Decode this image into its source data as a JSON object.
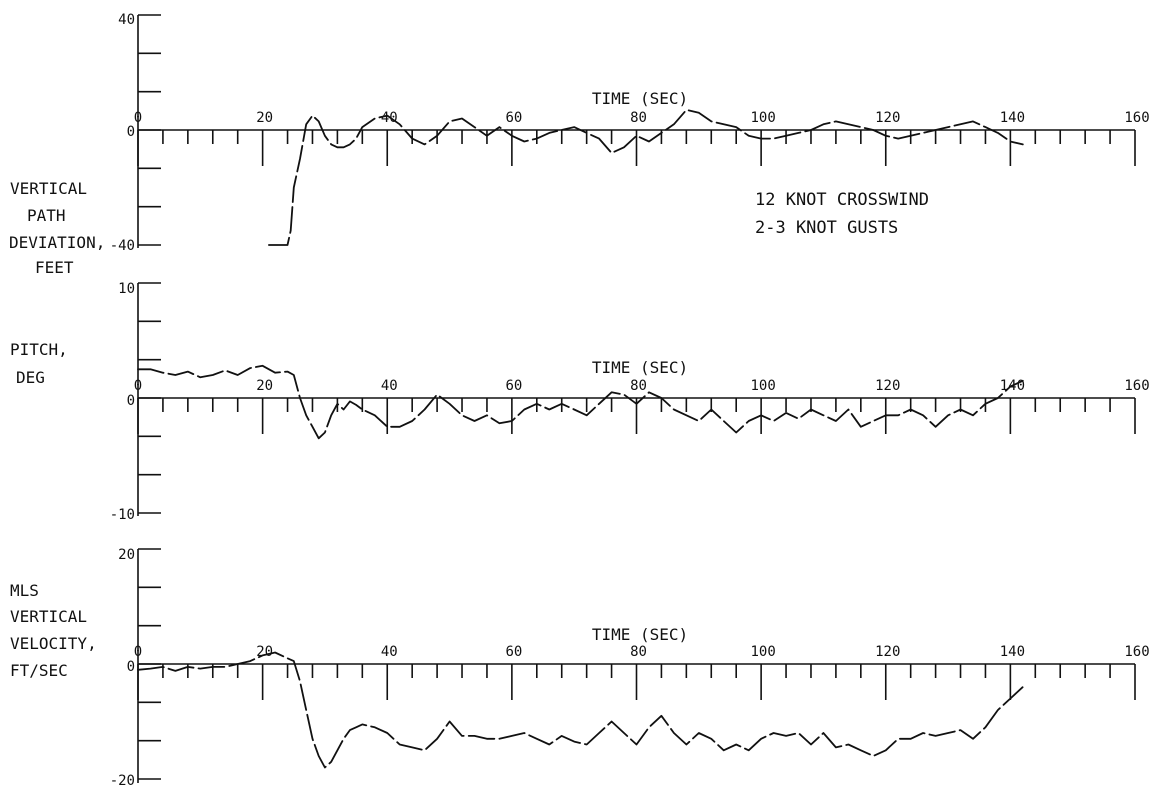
{
  "chart_data": [
    {
      "type": "line",
      "ylabel_lines": [
        "VERTICAL",
        "PATH",
        "DEVIATION,",
        "FEET"
      ],
      "xlabel": "TIME (SEC)",
      "xlim": [
        0,
        160
      ],
      "ylim": [
        -40,
        40
      ],
      "x_ticks": [
        0,
        20,
        40,
        60,
        80,
        100,
        120,
        140,
        160
      ],
      "y_tick_labels": [
        "40",
        "0",
        "-40"
      ],
      "annotation_lines": [
        "12 KNOT CROSSWIND",
        "2-3 KNOT GUSTS"
      ],
      "series": [
        {
          "x": [
            21,
            24,
            24.5,
            25,
            26,
            27,
            28,
            29,
            30,
            31,
            32,
            33,
            34,
            35,
            36,
            38,
            40,
            42,
            44,
            46,
            48,
            50,
            52,
            54,
            56,
            58,
            60,
            62,
            64,
            66,
            68,
            70,
            72,
            74,
            76,
            78,
            80,
            82,
            84,
            86,
            88,
            90,
            92,
            94,
            96,
            98,
            100,
            102,
            104,
            106,
            108,
            110,
            112,
            114,
            116,
            118,
            120,
            122,
            124,
            126,
            128,
            130,
            132,
            134,
            136,
            138,
            140,
            142
          ],
          "y": [
            -40,
            -40,
            -35,
            -20,
            -10,
            2,
            5,
            3,
            -2,
            -5,
            -6,
            -6,
            -5,
            -3,
            1,
            4,
            5,
            2,
            -3,
            -5,
            -2,
            3,
            4,
            1,
            -2,
            1,
            -2,
            -4,
            -3,
            -1,
            0,
            1,
            -1,
            -3,
            -8,
            -6,
            -2,
            -4,
            -1,
            2,
            7,
            6,
            3,
            2,
            1,
            -2,
            -3,
            -3,
            -2,
            -1,
            0,
            2,
            3,
            2,
            1,
            0,
            -2,
            -3,
            -2,
            -1,
            0,
            1,
            2,
            3,
            1,
            -1,
            -4,
            -5
          ]
        }
      ]
    },
    {
      "type": "line",
      "ylabel_lines": [
        "PITCH,",
        "DEG"
      ],
      "xlabel": "TIME (SEC)",
      "xlim": [
        0,
        160
      ],
      "ylim": [
        -10,
        10
      ],
      "x_ticks": [
        0,
        20,
        40,
        60,
        80,
        100,
        120,
        140,
        160
      ],
      "y_tick_labels": [
        "10",
        "0",
        "-10"
      ],
      "series": [
        {
          "x": [
            0,
            2,
            4,
            6,
            8,
            10,
            12,
            14,
            16,
            18,
            20,
            22,
            24,
            25,
            26,
            27,
            28,
            29,
            30,
            31,
            32,
            33,
            34,
            35,
            36,
            38,
            40,
            42,
            44,
            46,
            48,
            50,
            52,
            54,
            56,
            58,
            60,
            62,
            64,
            66,
            68,
            70,
            72,
            74,
            76,
            78,
            80,
            82,
            84,
            86,
            88,
            90,
            92,
            94,
            96,
            98,
            100,
            102,
            104,
            106,
            108,
            110,
            112,
            114,
            116,
            118,
            120,
            122,
            124,
            126,
            128,
            130,
            132,
            134,
            136,
            138,
            140,
            142
          ],
          "y": [
            2.5,
            2.5,
            2.2,
            2,
            2.3,
            1.8,
            2,
            2.4,
            2,
            2.6,
            2.8,
            2.2,
            2.3,
            2,
            0,
            -1.5,
            -2.5,
            -3.5,
            -3,
            -1.5,
            -0.5,
            -1,
            -0.3,
            -0.6,
            -1,
            -1.5,
            -2.5,
            -2.5,
            -2,
            -1,
            0.3,
            -0.5,
            -1.5,
            -2,
            -1.5,
            -2.2,
            -2,
            -1,
            -0.5,
            -1,
            -0.5,
            -1,
            -1.5,
            -0.5,
            0.5,
            0.3,
            -0.5,
            0.5,
            0,
            -1,
            -1.5,
            -2,
            -1,
            -2,
            -3,
            -2,
            -1.5,
            -2,
            -1.3,
            -1.8,
            -1,
            -1.5,
            -2,
            -1,
            -2.5,
            -2,
            -1.5,
            -1.5,
            -1,
            -1.5,
            -2.5,
            -1.5,
            -1,
            -1.5,
            -0.5,
            0,
            1,
            1.5
          ]
        }
      ]
    },
    {
      "type": "line",
      "ylabel_lines": [
        "MLS",
        "VERTICAL",
        "VELOCITY,",
        "FT/SEC"
      ],
      "xlabel": "TIME (SEC)",
      "xlim": [
        0,
        160
      ],
      "ylim": [
        -20,
        20
      ],
      "x_ticks": [
        0,
        20,
        40,
        60,
        80,
        100,
        120,
        140,
        160
      ],
      "y_tick_labels": [
        "20",
        "0",
        "-20"
      ],
      "series": [
        {
          "x": [
            0,
            2,
            4,
            6,
            8,
            10,
            12,
            14,
            16,
            18,
            20,
            22,
            24,
            25,
            26,
            27,
            28,
            29,
            30,
            31,
            32,
            33,
            34,
            35,
            36,
            38,
            40,
            42,
            44,
            46,
            48,
            50,
            52,
            54,
            56,
            58,
            60,
            62,
            64,
            66,
            68,
            70,
            72,
            74,
            76,
            78,
            80,
            82,
            84,
            86,
            88,
            90,
            92,
            94,
            96,
            98,
            100,
            102,
            104,
            106,
            108,
            110,
            112,
            114,
            116,
            118,
            120,
            122,
            124,
            126,
            128,
            130,
            132,
            134,
            136,
            138,
            140,
            142
          ],
          "y": [
            -1,
            -0.8,
            -0.5,
            -1.2,
            -0.5,
            -0.8,
            -0.5,
            -0.5,
            0,
            0.5,
            1.5,
            2,
            1,
            0.5,
            -3,
            -8,
            -13,
            -16,
            -18,
            -17,
            -15,
            -13,
            -11.5,
            -11,
            -10.5,
            -11,
            -12,
            -14,
            -14.5,
            -15,
            -13,
            -10,
            -12.5,
            -12.5,
            -13,
            -13,
            -12.5,
            -12,
            -13,
            -14,
            -12.5,
            -13.5,
            -14,
            -12,
            -10,
            -12,
            -14,
            -11,
            -9,
            -12,
            -14,
            -12,
            -13,
            -15,
            -14,
            -15,
            -13,
            -12,
            -12.5,
            -12,
            -14,
            -12,
            -14.5,
            -14,
            -15,
            -16,
            -15,
            -13,
            -13,
            -12,
            -12.5,
            -12,
            -11.5,
            -13,
            -11,
            -8,
            -6,
            -4
          ]
        }
      ]
    }
  ]
}
